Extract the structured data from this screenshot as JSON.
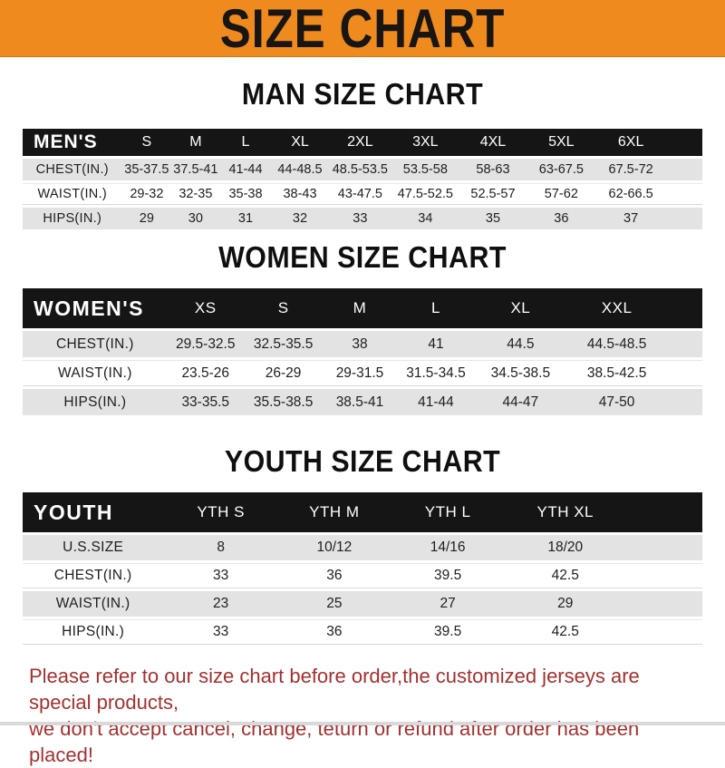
{
  "banner": {
    "title": "SIZE CHART"
  },
  "colors": {
    "banner_bg": "#EE8A1E",
    "bar_bg": "#151515",
    "shade_row": "#E3E3E3",
    "footer_text": "#A53030"
  },
  "tables": [
    {
      "id": "men",
      "title": "MAN SIZE CHART",
      "header_label": "MEN'S",
      "columns": [
        "S",
        "M",
        "L",
        "XL",
        "2XL",
        "3XL",
        "4XL",
        "5XL",
        "6XL"
      ],
      "rows": [
        {
          "label": "CHEST(IN.)",
          "values": [
            "35-37.5",
            "37.5-41",
            "41-44",
            "44-48.5",
            "48.5-53.5",
            "53.5-58",
            "58-63",
            "63-67.5",
            "67.5-72"
          ]
        },
        {
          "label": "WAIST(IN.)",
          "values": [
            "29-32",
            "32-35",
            "35-38",
            "38-43",
            "43-47.5",
            "47.5-52.5",
            "52.5-57",
            "57-62",
            "62-66.5"
          ]
        },
        {
          "label": "HIPS(IN.)",
          "values": [
            "29",
            "30",
            "31",
            "32",
            "33",
            "34",
            "35",
            "36",
            "37"
          ]
        }
      ]
    },
    {
      "id": "women",
      "title": "WOMEN SIZE CHART",
      "header_label": "WOMEN'S",
      "columns": [
        "XS",
        "S",
        "M",
        "L",
        "XL",
        "XXL"
      ],
      "rows": [
        {
          "label": "CHEST(IN.)",
          "values": [
            "29.5-32.5",
            "32.5-35.5",
            "38",
            "41",
            "44.5",
            "44.5-48.5"
          ]
        },
        {
          "label": "WAIST(IN.)",
          "values": [
            "23.5-26",
            "26-29",
            "29-31.5",
            "31.5-34.5",
            "34.5-38.5",
            "38.5-42.5"
          ]
        },
        {
          "label": "HIPS(IN.)",
          "values": [
            "33-35.5",
            "35.5-38.5",
            "38.5-41",
            "41-44",
            "44-47",
            "47-50"
          ]
        }
      ]
    },
    {
      "id": "youth",
      "title": "YOUTH SIZE CHART",
      "header_label": "YOUTH",
      "columns": [
        "YTH S",
        "YTH M",
        "YTH L",
        "YTH XL"
      ],
      "rows": [
        {
          "label": "U.S.SIZE",
          "values": [
            "8",
            "10/12",
            "14/16",
            "18/20"
          ]
        },
        {
          "label": "CHEST(IN.)",
          "values": [
            "33",
            "36",
            "39.5",
            "42.5"
          ]
        },
        {
          "label": "WAIST(IN.)",
          "values": [
            "23",
            "25",
            "27",
            "29"
          ]
        },
        {
          "label": "HIPS(IN.)",
          "values": [
            "33",
            "36",
            "39.5",
            "42.5"
          ]
        }
      ]
    }
  ],
  "footer": {
    "line1": "Please refer to our size chart before order,the customized jerseys are special products,",
    "line2": "we don't accept cancel, change, teturn or refund after order has been placed!"
  }
}
